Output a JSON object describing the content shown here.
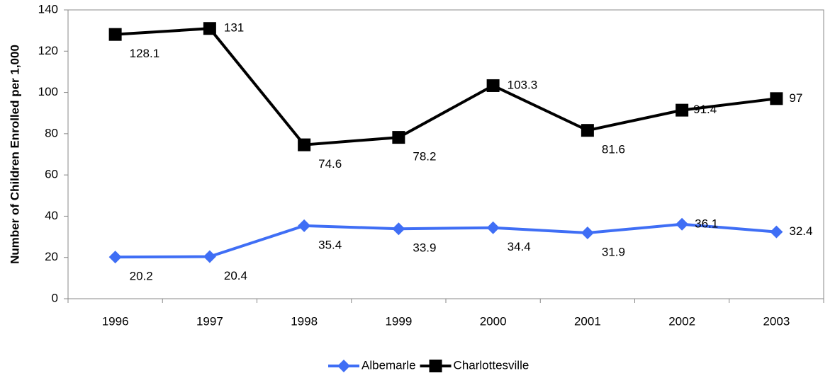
{
  "chart_data": {
    "type": "line",
    "y_label": "Number of Children Enrolled per 1,000",
    "categories": [
      "1996",
      "1997",
      "1998",
      "1999",
      "2000",
      "2001",
      "2002",
      "2003"
    ],
    "series": [
      {
        "name": "Albemarle",
        "color": "#3f6ef5",
        "marker": "diamond",
        "values": [
          20.2,
          20.4,
          35.4,
          33.9,
          34.4,
          31.9,
          36.1,
          32.4
        ]
      },
      {
        "name": "Charlottesville",
        "color": "#000000",
        "marker": "square",
        "values": [
          128.1,
          131,
          74.6,
          78.2,
          103.3,
          81.6,
          91.4,
          97
        ]
      }
    ],
    "ylim": [
      0,
      140
    ],
    "yticks": [
      0,
      20,
      40,
      60,
      80,
      100,
      120,
      140
    ],
    "legend": "bottom"
  }
}
